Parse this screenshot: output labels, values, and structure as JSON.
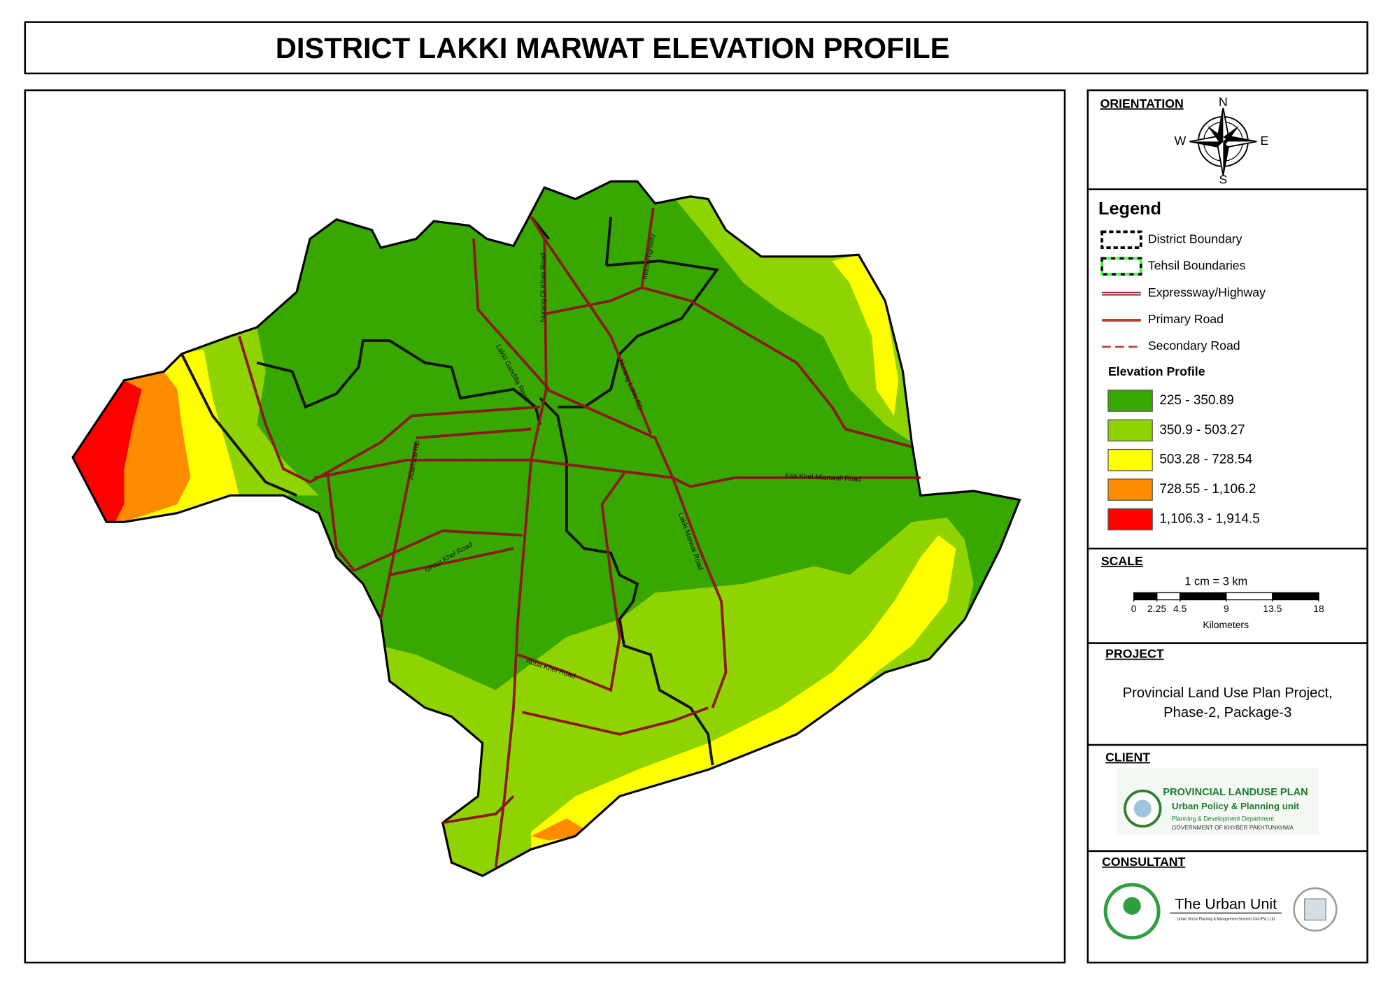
{
  "header": {
    "title": "DISTRICT LAKKI MARWAT ELEVATION PROFILE"
  },
  "map": {
    "road_labels": [
      "Lakki Gandilla Road",
      "Nurang Di Khan Road",
      "Indus Highway",
      "Nurang Lakki RD",
      "Esa Khel Mianwali Road",
      "Adamzai RD",
      "Ghazi Khel Road",
      "Lakki Marwat Road",
      "Abba Khel Road"
    ]
  },
  "orientation": {
    "title": "ORIENTATION",
    "north": "N",
    "south": "S",
    "east": "E",
    "west": "W"
  },
  "legend": {
    "title": "Legend",
    "items": [
      "District Boundary",
      "Tehsil Boundaries",
      "Expressway/Highway",
      "Primary Road",
      "Secondary Road"
    ],
    "elevation_title": "Elevation Profile",
    "classes": [
      {
        "label": "225 - 350.89",
        "color": "#38a800"
      },
      {
        "label": "350.9 - 503.27",
        "color": "#8fd400"
      },
      {
        "label": "503.28 - 728.54",
        "color": "#ffff00"
      },
      {
        "label": "728.55 - 1,106.2",
        "color": "#ff8c00"
      },
      {
        "label": "1,106.3 - 1,914.5",
        "color": "#ff0000"
      }
    ]
  },
  "scale": {
    "title": "SCALE",
    "ratio": "1 cm = 3 km",
    "ticks": [
      0,
      2.25,
      4.5,
      9,
      13.5,
      18
    ],
    "unit": "Kilometers"
  },
  "project": {
    "title": "PROJECT",
    "lines": [
      "Provincial Land Use Plan Project,",
      "Phase-2, Package-3"
    ]
  },
  "client": {
    "title": "CLIENT",
    "logo_lines": [
      "PROVINCIAL  LANDUSE PLAN",
      "Urban Policy & Planning unit",
      "Planning & Development Department",
      "GOVERNMENT OF KHYBER PAKHTUNKHWA"
    ]
  },
  "consultant": {
    "title": "CONSULTANT",
    "name": "The Urban Unit",
    "subtitle": "Urban Sector Planning & Management Services Unit (Pvt.) Ltd"
  }
}
